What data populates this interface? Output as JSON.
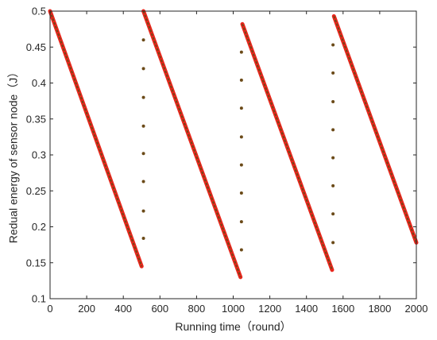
{
  "chart_data": {
    "type": "scatter",
    "title": "",
    "xlabel": "Running time（round）",
    "ylabel": "Redual energy of sensor node（J）",
    "xlim": [
      0,
      2000
    ],
    "ylim": [
      0.1,
      0.5
    ],
    "xticks": [
      0,
      200,
      400,
      600,
      800,
      1000,
      1200,
      1400,
      1600,
      1800,
      2000
    ],
    "yticks": [
      0.1,
      0.15,
      0.2,
      0.25,
      0.3,
      0.35,
      0.4,
      0.45,
      0.5
    ],
    "ytick_labels": [
      "0.1",
      "0.15",
      "0.2",
      "0.25",
      "0.3",
      "0.35",
      "0.4",
      "0.45",
      "0.5"
    ],
    "grid": false,
    "box": true,
    "series": [
      {
        "kind": "line",
        "color": "#e8261c",
        "overlay_color": "#6b4a18",
        "segments": [
          {
            "x": [
              0,
              500
            ],
            "y": [
              0.5,
              0.145
            ]
          },
          {
            "x": [
              510,
              1040
            ],
            "y": [
              0.5,
              0.13
            ]
          },
          {
            "x": [
              1050,
              1540
            ],
            "y": [
              0.482,
              0.14
            ]
          },
          {
            "x": [
              1550,
              2000
            ],
            "y": [
              0.493,
              0.178
            ]
          }
        ]
      },
      {
        "kind": "points",
        "color": "#6b4a18",
        "points": [
          {
            "x": 510,
            "y": 0.46
          },
          {
            "x": 510,
            "y": 0.42
          },
          {
            "x": 510,
            "y": 0.38
          },
          {
            "x": 510,
            "y": 0.34
          },
          {
            "x": 510,
            "y": 0.302
          },
          {
            "x": 510,
            "y": 0.263
          },
          {
            "x": 510,
            "y": 0.222
          },
          {
            "x": 510,
            "y": 0.184
          },
          {
            "x": 1045,
            "y": 0.443
          },
          {
            "x": 1045,
            "y": 0.404
          },
          {
            "x": 1045,
            "y": 0.365
          },
          {
            "x": 1045,
            "y": 0.325
          },
          {
            "x": 1045,
            "y": 0.286
          },
          {
            "x": 1045,
            "y": 0.247
          },
          {
            "x": 1045,
            "y": 0.207
          },
          {
            "x": 1045,
            "y": 0.168
          },
          {
            "x": 1545,
            "y": 0.453
          },
          {
            "x": 1545,
            "y": 0.414
          },
          {
            "x": 1545,
            "y": 0.374
          },
          {
            "x": 1545,
            "y": 0.335
          },
          {
            "x": 1545,
            "y": 0.296
          },
          {
            "x": 1545,
            "y": 0.257
          },
          {
            "x": 1545,
            "y": 0.218
          },
          {
            "x": 1545,
            "y": 0.178
          }
        ]
      }
    ]
  }
}
